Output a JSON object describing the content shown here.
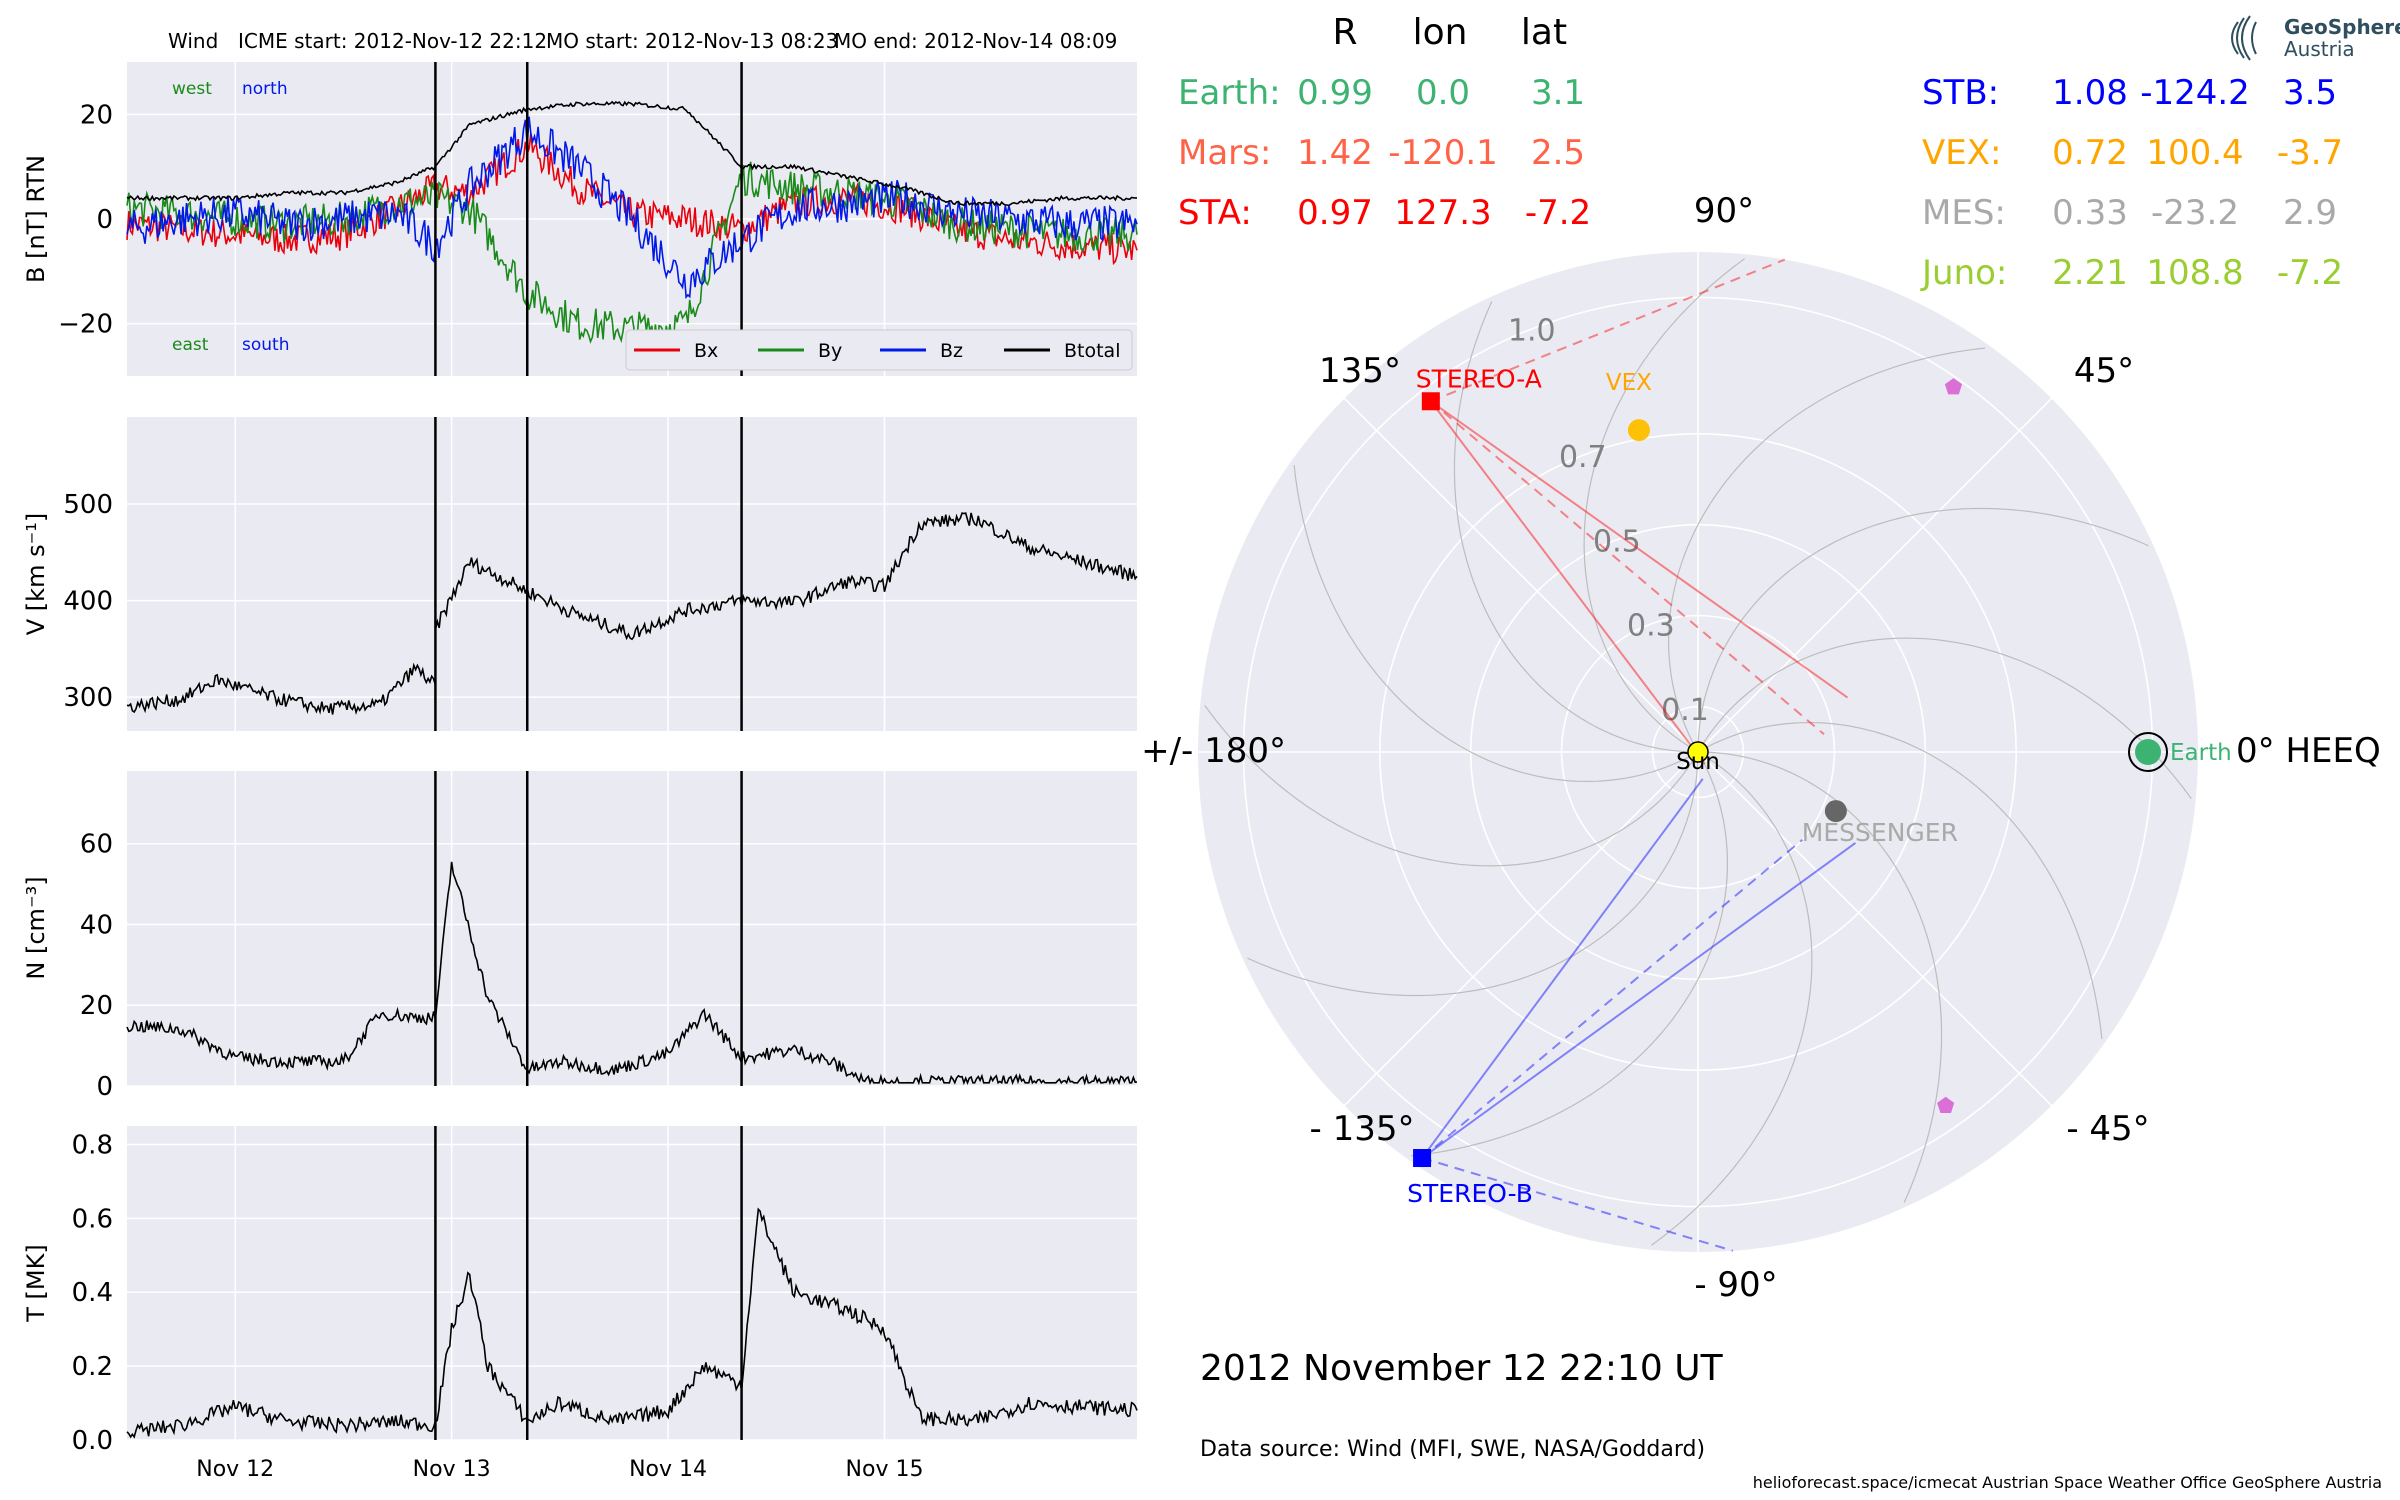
{
  "header": {
    "spacecraft": "Wind",
    "icme_start": "ICME start: 2012-Nov-12 22:12",
    "mo_start": "MO start: 2012-Nov-13 08:23",
    "mo_end": "MO end: 2012-Nov-14 08:09"
  },
  "chart_data": [
    {
      "type": "line",
      "id": "magnetic-field",
      "ylabel": "B [nT] RTN",
      "ylim": [
        -30,
        30
      ],
      "yticks": [
        "20",
        "0",
        "−20"
      ],
      "annotations": {
        "top_left": "west",
        "top_right": "north",
        "bottom_left": "east",
        "bottom_right": "south"
      },
      "legend": [
        "Bx",
        "By",
        "Bz",
        "Btotal"
      ],
      "legend_position": "lower-right",
      "series": [
        {
          "name": "Bx",
          "color": "#e8000b",
          "x": [
            "2012-11-11 12:00",
            "2012-11-11 18:00",
            "2012-11-12 00:00",
            "2012-11-12 06:00",
            "2012-11-12 12:00",
            "2012-11-12 18:00",
            "2012-11-12 22:12",
            "2012-11-13 02:00",
            "2012-11-13 08:23",
            "2012-11-13 14:00",
            "2012-11-13 20:00",
            "2012-11-14 02:00",
            "2012-11-14 08:09",
            "2012-11-14 14:00",
            "2012-11-14 20:00",
            "2012-11-15 02:00",
            "2012-11-15 08:00",
            "2012-11-15 14:00",
            "2012-11-15 20:00",
            "2012-11-16 04:00"
          ],
          "y": [
            -1,
            -2,
            -3,
            -4,
            -3,
            2,
            6,
            5,
            14,
            6,
            1,
            0,
            -2,
            3,
            4,
            2,
            -2,
            -4,
            -5,
            -6
          ]
        },
        {
          "name": "By",
          "color": "#1a8a1a",
          "x": [
            "2012-11-11 12:00",
            "2012-11-11 18:00",
            "2012-11-12 00:00",
            "2012-11-12 06:00",
            "2012-11-12 12:00",
            "2012-11-12 18:00",
            "2012-11-12 22:12",
            "2012-11-13 02:00",
            "2012-11-13 08:23",
            "2012-11-13 14:00",
            "2012-11-13 20:00",
            "2012-11-14 02:00",
            "2012-11-14 08:09",
            "2012-11-14 14:00",
            "2012-11-14 20:00",
            "2012-11-15 02:00",
            "2012-11-15 08:00",
            "2012-11-15 14:00",
            "2012-11-15 20:00",
            "2012-11-16 04:00"
          ],
          "y": [
            2,
            1,
            0,
            -1,
            0,
            3,
            4,
            2,
            -14,
            -20,
            -21,
            -20,
            8,
            6,
            5,
            3,
            -1,
            -2,
            -3,
            -3
          ]
        },
        {
          "name": "Bz",
          "color": "#0018e8",
          "x": [
            "2012-11-11 12:00",
            "2012-11-11 18:00",
            "2012-11-12 00:00",
            "2012-11-12 06:00",
            "2012-11-12 12:00",
            "2012-11-12 18:00",
            "2012-11-12 22:12",
            "2012-11-13 02:00",
            "2012-11-13 08:23",
            "2012-11-13 14:00",
            "2012-11-13 20:00",
            "2012-11-14 02:00",
            "2012-11-14 08:09",
            "2012-11-14 14:00",
            "2012-11-14 20:00",
            "2012-11-15 02:00",
            "2012-11-15 08:00",
            "2012-11-15 14:00",
            "2012-11-15 20:00",
            "2012-11-16 04:00"
          ],
          "y": [
            -2,
            0,
            1,
            -1,
            0,
            1,
            -5,
            6,
            17,
            10,
            0,
            -12,
            -4,
            2,
            3,
            4,
            1,
            0,
            -1,
            -1
          ]
        },
        {
          "name": "Btotal",
          "color": "#000000",
          "x": [
            "2012-11-11 12:00",
            "2012-11-11 18:00",
            "2012-11-12 00:00",
            "2012-11-12 06:00",
            "2012-11-12 12:00",
            "2012-11-12 18:00",
            "2012-11-12 22:12",
            "2012-11-13 02:00",
            "2012-11-13 08:23",
            "2012-11-13 14:00",
            "2012-11-13 20:00",
            "2012-11-14 02:00",
            "2012-11-14 08:09",
            "2012-11-14 14:00",
            "2012-11-14 20:00",
            "2012-11-15 02:00",
            "2012-11-15 08:00",
            "2012-11-15 14:00",
            "2012-11-15 20:00",
            "2012-11-16 04:00"
          ],
          "y": [
            4,
            4,
            4,
            5,
            5,
            7,
            10,
            18,
            21,
            22,
            22,
            21,
            10,
            10,
            8,
            6,
            3,
            3,
            4,
            4
          ]
        }
      ]
    },
    {
      "type": "line",
      "id": "speed",
      "ylabel": "V [km s⁻¹]",
      "ylim": [
        265,
        590
      ],
      "yticks": [
        "500",
        "400",
        "300"
      ],
      "series": [
        {
          "color": "#000000",
          "x": [
            "2012-11-11 12:00",
            "2012-11-11 18:00",
            "2012-11-11 22:00",
            "2012-11-12 04:00",
            "2012-11-12 10:00",
            "2012-11-12 16:00",
            "2012-11-12 20:00",
            "2012-11-12 22:11",
            "2012-11-12 22:13",
            "2012-11-13 02:00",
            "2012-11-13 08:23",
            "2012-11-13 14:00",
            "2012-11-13 20:00",
            "2012-11-14 02:00",
            "2012-11-14 08:09",
            "2012-11-14 14:00",
            "2012-11-14 20:00",
            "2012-11-15 00:00",
            "2012-11-15 04:00",
            "2012-11-15 10:00",
            "2012-11-15 16:00",
            "2012-11-15 22:00",
            "2012-11-16 04:00"
          ],
          "y": [
            290,
            298,
            318,
            300,
            288,
            292,
            330,
            312,
            370,
            440,
            410,
            385,
            365,
            390,
            400,
            398,
            420,
            415,
            480,
            485,
            455,
            440,
            425
          ]
        }
      ]
    },
    {
      "type": "line",
      "id": "density",
      "ylabel": "N [cm⁻³]",
      "ylim": [
        0,
        78
      ],
      "yticks": [
        "60",
        "40",
        "20",
        "0"
      ],
      "series": [
        {
          "color": "#000000",
          "x": [
            "2012-11-11 12:00",
            "2012-11-11 18:00",
            "2012-11-12 00:00",
            "2012-11-12 06:00",
            "2012-11-12 12:00",
            "2012-11-12 16:00",
            "2012-11-12 20:00",
            "2012-11-12 22:12",
            "2012-11-13 00:00",
            "2012-11-13 04:00",
            "2012-11-13 08:23",
            "2012-11-13 12:00",
            "2012-11-13 18:00",
            "2012-11-14 00:00",
            "2012-11-14 04:00",
            "2012-11-14 08:09",
            "2012-11-14 14:00",
            "2012-11-14 18:00",
            "2012-11-14 22:00",
            "2012-11-15 04:00",
            "2012-11-15 12:00",
            "2012-11-16 04:00"
          ],
          "y": [
            15,
            14,
            7,
            6,
            6,
            18,
            17,
            17,
            55,
            22,
            4,
            6,
            4,
            8,
            18,
            7,
            9,
            6,
            1,
            1,
            1,
            1
          ]
        }
      ]
    },
    {
      "type": "line",
      "id": "temperature",
      "ylabel": "T [MK]",
      "ylim": [
        0,
        0.85
      ],
      "yticks": [
        "0.8",
        "0.6",
        "0.4",
        "0.2",
        "0.0"
      ],
      "xticks": [
        "Nov 12",
        "Nov 13",
        "Nov 14",
        "Nov 15"
      ],
      "series": [
        {
          "color": "#000000",
          "x": [
            "2012-11-11 12:00",
            "2012-11-11 18:00",
            "2012-11-12 00:00",
            "2012-11-12 06:00",
            "2012-11-12 12:00",
            "2012-11-12 18:00",
            "2012-11-12 22:12",
            "2012-11-13 00:00",
            "2012-11-13 02:00",
            "2012-11-13 04:00",
            "2012-11-13 08:23",
            "2012-11-13 12:00",
            "2012-11-13 18:00",
            "2012-11-14 00:00",
            "2012-11-14 04:00",
            "2012-11-14 08:09",
            "2012-11-14 10:00",
            "2012-11-14 14:00",
            "2012-11-14 20:00",
            "2012-11-15 00:00",
            "2012-11-15 04:00",
            "2012-11-15 10:00",
            "2012-11-15 16:00",
            "2012-11-16 04:00"
          ],
          "y": [
            0.02,
            0.04,
            0.09,
            0.05,
            0.04,
            0.05,
            0.04,
            0.3,
            0.45,
            0.2,
            0.05,
            0.1,
            0.05,
            0.08,
            0.2,
            0.15,
            0.62,
            0.4,
            0.35,
            0.3,
            0.06,
            0.05,
            0.1,
            0.08
          ]
        }
      ]
    },
    {
      "type": "scatter",
      "id": "heliosphere-polar",
      "coordinate_system": "HEEQ (polar: longitude in degrees, radius in AU)",
      "radial_ticks": [
        "1.0",
        "0.7",
        "0.5",
        "0.3",
        "0.1"
      ],
      "angle_labels": {
        "a90": "90°",
        "a45": "45°",
        "a0": "0° HEEQ",
        "am45": "- 45°",
        "am90": "- 90°",
        "am135": "- 135°",
        "a180": "+/- 180°",
        "a135": "135°"
      },
      "bodies": [
        {
          "name": "Sun",
          "lon": 0,
          "r": 0.0,
          "color": "#ffff00"
        },
        {
          "name": "Earth",
          "lon": 0.0,
          "r": 0.99,
          "color": "#3cb371"
        },
        {
          "name": "STEREO-A",
          "lon": 127.3,
          "r": 0.97,
          "color": "#ff0000"
        },
        {
          "name": "STEREO-B",
          "lon": -124.2,
          "r": 1.08,
          "color": "#0000ff"
        },
        {
          "name": "VEX",
          "lon": 100.4,
          "r": 0.72,
          "color": "#ffc107"
        },
        {
          "name": "MESSENGER",
          "lon": -23.2,
          "r": 0.33,
          "color": "#666666"
        },
        {
          "name": "",
          "lon": 55,
          "r": 0.98,
          "color": "#da70d6"
        },
        {
          "name": "",
          "lon": -55,
          "r": 0.95,
          "color": "#da70d6"
        }
      ]
    }
  ],
  "positions_table": {
    "headers": [
      "R",
      "lon",
      "lat"
    ],
    "left": [
      {
        "label": "Earth:",
        "R": "0.99",
        "lon": "0.0",
        "lat": "3.1",
        "color": "#3cb371"
      },
      {
        "label": "Mars:",
        "R": "1.42",
        "lon": "-120.1",
        "lat": "2.5",
        "color": "#ff6347"
      },
      {
        "label": "STA:",
        "R": "0.97",
        "lon": "127.3",
        "lat": "-7.2",
        "color": "#ff0000"
      }
    ],
    "right": [
      {
        "label": "STB:",
        "R": "1.08",
        "lon": "-124.2",
        "lat": "3.5",
        "color": "#0000ff"
      },
      {
        "label": "VEX:",
        "R": "0.72",
        "lon": "100.4",
        "lat": "-3.7",
        "color": "#ffa500"
      },
      {
        "label": "MES:",
        "R": "0.33",
        "lon": "-23.2",
        "lat": "2.9",
        "color": "#a9a9a9"
      },
      {
        "label": "Juno:",
        "R": "2.21",
        "lon": "108.8",
        "lat": "-7.2",
        "color": "#9acd32"
      }
    ]
  },
  "footer": {
    "datetime": "2012 November 12  22:10 UT",
    "source": "Data source: Wind (MFI, SWE, NASA/Goddard)",
    "credits": "helioforecast.space/icmecat   Austrian Space Weather Office   GeoSphere Austria"
  },
  "logo": {
    "line1": "GeoSphere",
    "line2": "Austria"
  },
  "colors": {
    "panel_bg": "#eaeaf2",
    "grid": "#ffffff",
    "event_line": "#000000"
  }
}
